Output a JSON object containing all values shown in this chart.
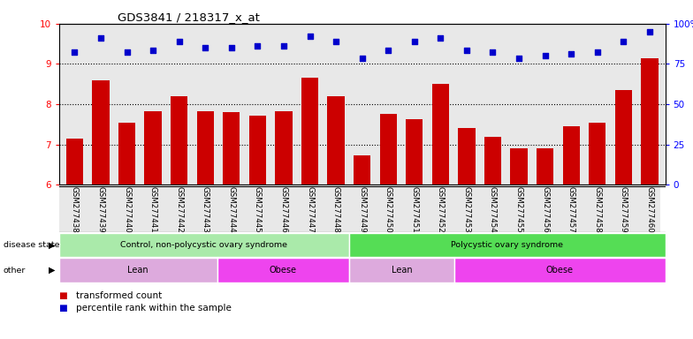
{
  "title": "GDS3841 / 218317_x_at",
  "samples": [
    "GSM277438",
    "GSM277439",
    "GSM277440",
    "GSM277441",
    "GSM277442",
    "GSM277443",
    "GSM277444",
    "GSM277445",
    "GSM277446",
    "GSM277447",
    "GSM277448",
    "GSM277449",
    "GSM277450",
    "GSM277451",
    "GSM277452",
    "GSM277453",
    "GSM277454",
    "GSM277455",
    "GSM277456",
    "GSM277457",
    "GSM277458",
    "GSM277459",
    "GSM277460"
  ],
  "bar_values": [
    7.15,
    8.6,
    7.55,
    7.82,
    8.2,
    7.82,
    7.8,
    7.72,
    7.82,
    8.65,
    8.2,
    6.72,
    7.75,
    7.62,
    8.5,
    7.4,
    7.2,
    6.9,
    6.9,
    7.45,
    7.55,
    8.35,
    9.15
  ],
  "dot_values": [
    9.3,
    9.65,
    9.3,
    9.35,
    9.55,
    9.4,
    9.4,
    9.45,
    9.45,
    9.7,
    9.55,
    9.15,
    9.35,
    9.55,
    9.65,
    9.35,
    9.3,
    9.15,
    9.2,
    9.25,
    9.3,
    9.55,
    9.8
  ],
  "ylim_left": [
    6,
    10
  ],
  "yticks_left": [
    6,
    7,
    8,
    9,
    10
  ],
  "ytick_labels_right": [
    "0",
    "25",
    "50",
    "75",
    "100%"
  ],
  "bar_color": "#cc0000",
  "dot_color": "#0000cc",
  "bg_color": "#e8e8e8",
  "disease_state_groups": [
    {
      "label": "Control, non-polycystic ovary syndrome",
      "start": 0,
      "end": 11,
      "color": "#aaeaaa"
    },
    {
      "label": "Polycystic ovary syndrome",
      "start": 11,
      "end": 23,
      "color": "#55dd55"
    }
  ],
  "other_groups": [
    {
      "label": "Lean",
      "start": 0,
      "end": 6,
      "color": "#ddaadd"
    },
    {
      "label": "Obese",
      "start": 6,
      "end": 11,
      "color": "#ee44ee"
    },
    {
      "label": "Lean",
      "start": 11,
      "end": 15,
      "color": "#ddaadd"
    },
    {
      "label": "Obese",
      "start": 15,
      "end": 23,
      "color": "#ee44ee"
    }
  ],
  "legend_items": [
    {
      "label": "transformed count",
      "color": "#cc0000"
    },
    {
      "label": "percentile rank within the sample",
      "color": "#0000cc"
    }
  ]
}
